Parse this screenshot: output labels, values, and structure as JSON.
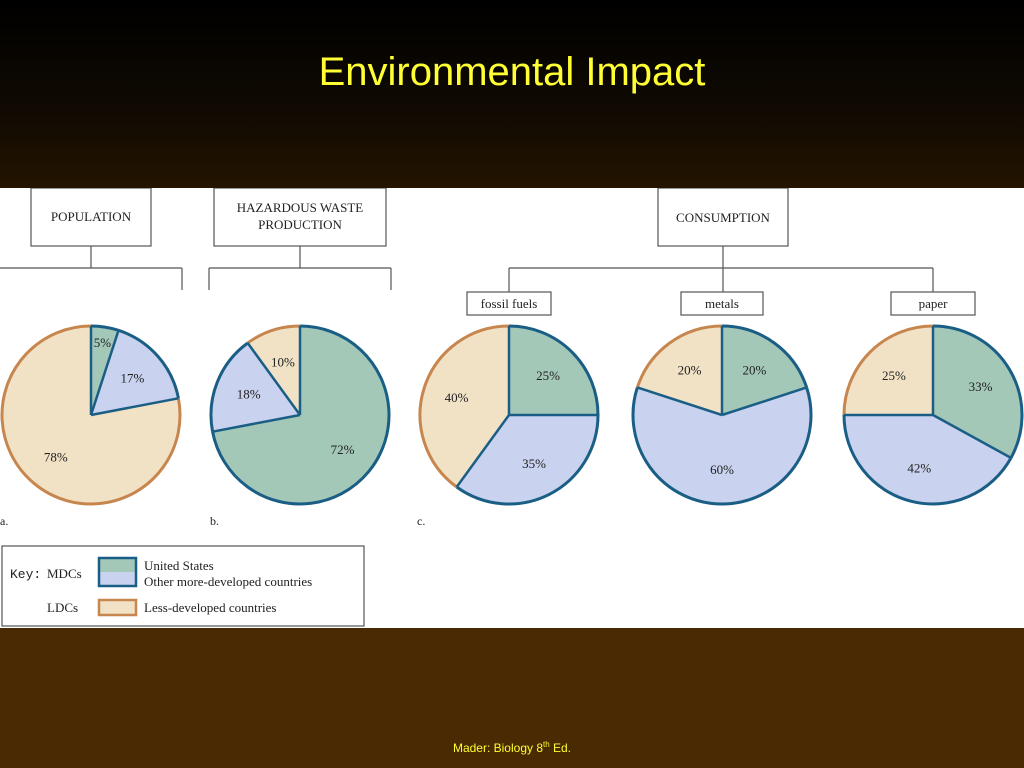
{
  "slide": {
    "title": "Environmental Impact",
    "footer_prefix": "Mader: Biology 8",
    "footer_sup": "th",
    "footer_suffix": " Ed."
  },
  "colors": {
    "us": "#a3c8b8",
    "other_mdc": "#c9d2ee",
    "ldc": "#f1e2c6",
    "mdc_stroke": "#1a5e86",
    "ldc_stroke": "#c8864f"
  },
  "headers": {
    "population": "POPULATION",
    "hazardous_line1": "HAZARDOUS WASTE",
    "hazardous_line2": "PRODUCTION",
    "consumption": "CONSUMPTION"
  },
  "sublabels": {
    "fossil": "fossil fuels",
    "metals": "metals",
    "paper": "paper"
  },
  "panel_labels": {
    "a": "a.",
    "b": "b.",
    "c": "c."
  },
  "key": {
    "prefix": "Key:",
    "mdcs": "MDCs",
    "ldcs": "LDCs",
    "us": "United States",
    "other": "Other more-developed countries",
    "ldc": "Less-developed countries"
  },
  "chart_data": [
    {
      "type": "pie",
      "title": "POPULATION",
      "categories": [
        "United States",
        "Other more-developed countries",
        "Less-developed countries"
      ],
      "values": [
        5,
        17,
        78
      ],
      "labels": [
        "5%",
        "17%",
        "78%"
      ]
    },
    {
      "type": "pie",
      "title": "HAZARDOUS WASTE PRODUCTION",
      "categories": [
        "United States",
        "Other more-developed countries",
        "Less-developed countries"
      ],
      "values": [
        72,
        18,
        10
      ],
      "labels": [
        "72%",
        "18%",
        "10%"
      ]
    },
    {
      "type": "pie",
      "title": "fossil fuels",
      "categories": [
        "United States",
        "Other more-developed countries",
        "Less-developed countries"
      ],
      "values": [
        25,
        35,
        40
      ],
      "labels": [
        "25%",
        "35%",
        "40%"
      ]
    },
    {
      "type": "pie",
      "title": "metals",
      "categories": [
        "United States",
        "Other more-developed countries",
        "Less-developed countries"
      ],
      "values": [
        20,
        60,
        20
      ],
      "labels": [
        "20%",
        "60%",
        "20%"
      ]
    },
    {
      "type": "pie",
      "title": "paper",
      "categories": [
        "United States",
        "Other more-developed countries",
        "Less-developed countries"
      ],
      "values": [
        33,
        42,
        25
      ],
      "labels": [
        "33%",
        "42%",
        "25%"
      ]
    }
  ]
}
